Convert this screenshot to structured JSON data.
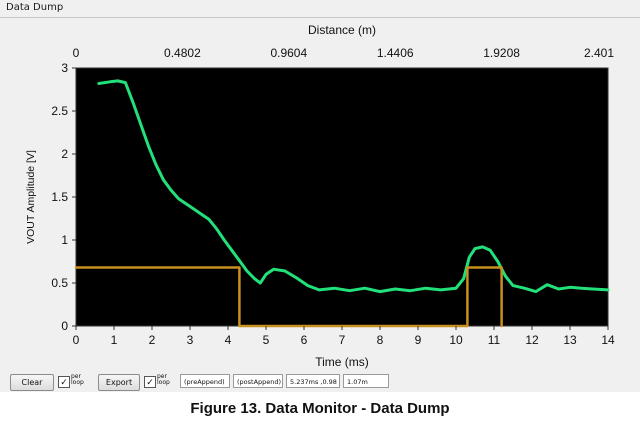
{
  "window": {
    "tab_title": "Data Dump"
  },
  "chart_data": {
    "type": "line",
    "xlabel": "Time (ms)",
    "x2label": "Distance (m)",
    "ylabel": "VOUT Amplitude [V]",
    "xlim": [
      0,
      14
    ],
    "ylim": [
      0,
      3
    ],
    "x_ticks": [
      "0",
      "1",
      "2",
      "3",
      "4",
      "5",
      "6",
      "7",
      "8",
      "9",
      "10",
      "11",
      "12",
      "13",
      "14"
    ],
    "y_ticks": [
      "0",
      "0.5",
      "1",
      "1.5",
      "2",
      "2.5",
      "3"
    ],
    "x2_ticks": [
      "0",
      "0.4802",
      "0.9604",
      "1.4406",
      "1.9208",
      "2.401"
    ],
    "background": "#000000",
    "series": [
      {
        "color": "#22e07a",
        "x": [
          0.6,
          0.9,
          1.1,
          1.3,
          1.5,
          1.7,
          1.9,
          2.1,
          2.3,
          2.5,
          2.7,
          2.9,
          3.1,
          3.3,
          3.5,
          3.7,
          3.9,
          4.1,
          4.3,
          4.5,
          4.7,
          4.85,
          5.0,
          5.2,
          5.5,
          5.8,
          6.1,
          6.4,
          6.8,
          7.2,
          7.6,
          8.0,
          8.4,
          8.8,
          9.2,
          9.6,
          10.0,
          10.2,
          10.35,
          10.5,
          10.7,
          10.9,
          11.1,
          11.3,
          11.5,
          11.8,
          12.1,
          12.4,
          12.7,
          13.0,
          13.3,
          13.6,
          14.0
        ],
        "y": [
          2.82,
          2.84,
          2.85,
          2.83,
          2.6,
          2.35,
          2.1,
          1.88,
          1.7,
          1.58,
          1.48,
          1.42,
          1.36,
          1.3,
          1.24,
          1.13,
          1.0,
          0.88,
          0.76,
          0.64,
          0.55,
          0.5,
          0.6,
          0.66,
          0.64,
          0.56,
          0.47,
          0.42,
          0.44,
          0.41,
          0.44,
          0.4,
          0.43,
          0.41,
          0.44,
          0.42,
          0.44,
          0.55,
          0.8,
          0.9,
          0.92,
          0.88,
          0.75,
          0.58,
          0.47,
          0.44,
          0.4,
          0.48,
          0.43,
          0.45,
          0.44,
          0.43,
          0.42
        ]
      },
      {
        "color": "#c8901e",
        "x": [
          0,
          4.3,
          4.3,
          10.3,
          10.3,
          11.2,
          11.2
        ],
        "y": [
          0.68,
          0.68,
          0,
          0,
          0.68,
          0.68,
          0
        ]
      }
    ]
  },
  "toolbar": {
    "clear_label": "Clear",
    "clear_check_label": "per loop",
    "export_label": "Export",
    "export_check_label": "per loop",
    "pre_append": "(preAppend)",
    "post_append": "(postAppend)",
    "cursor_readout": "5.237ms ,0.98",
    "distance_readout": "1.07m",
    "check_mark": "✓"
  },
  "caption": "Figure 13. Data Monitor - Data Dump"
}
